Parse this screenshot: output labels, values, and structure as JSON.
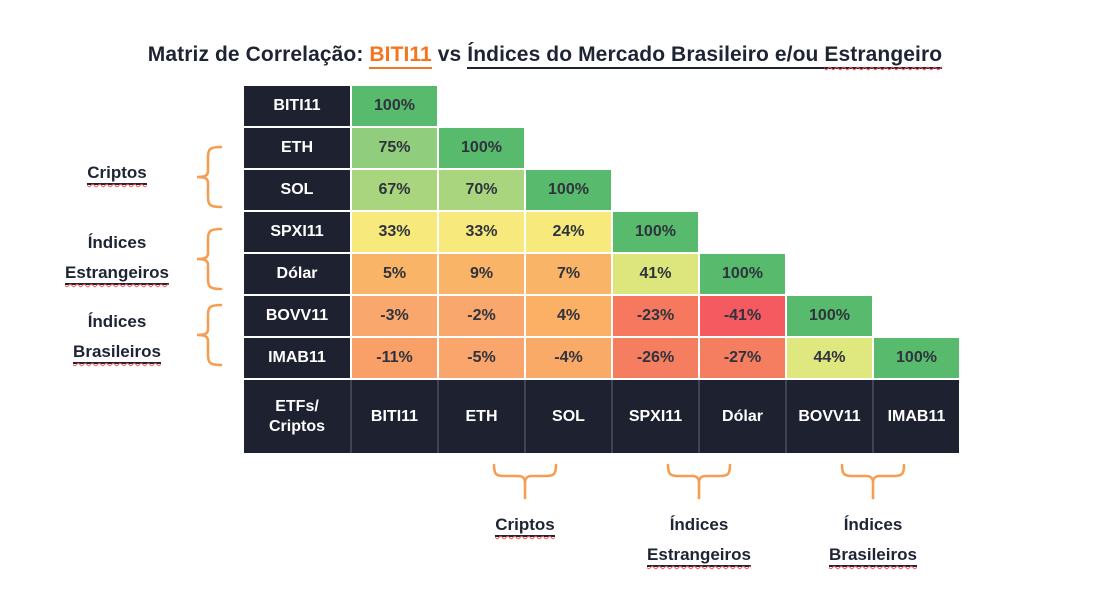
{
  "title": {
    "prefix": "Matriz de Correlação: ",
    "highlight": "BITI11",
    "middle": " vs ",
    "suffix_plain": "Índices do Mercado Brasileiro e/ou ",
    "suffix_squiggle": "Estrangeiro"
  },
  "colors": {
    "header_navy": "#1e2230",
    "accent_orange": "#f5741d",
    "brace_orange": "#f59d52",
    "squiggle_red": "#ff5050",
    "positive_green": "#58ba6c",
    "negative_red": "#f55a61"
  },
  "chart_data": {
    "type": "heatmap",
    "title": "Matriz de Correlação: BITI11 vs Índices do Mercado Brasileiro e/ou Estrangeiro",
    "corner_label_lines": [
      "ETFs/",
      "Criptos"
    ],
    "labels": [
      "BITI11",
      "ETH",
      "SOL",
      "SPXI11",
      "Dólar",
      "BOVV11",
      "IMAB11"
    ],
    "value_suffix": "%",
    "matrix_percent": [
      [
        100
      ],
      [
        75,
        100
      ],
      [
        67,
        70,
        100
      ],
      [
        33,
        33,
        24,
        100
      ],
      [
        5,
        9,
        7,
        41,
        100
      ],
      [
        -3,
        -2,
        4,
        -23,
        -41,
        100
      ],
      [
        -11,
        -5,
        -4,
        -26,
        -27,
        44,
        100
      ]
    ],
    "cell_colors": [
      [
        "#58ba6c"
      ],
      [
        "#90ce7d",
        "#58ba6c"
      ],
      [
        "#a9d57e",
        "#a9d57e",
        "#58ba6c"
      ],
      [
        "#f8e97c",
        "#f8e97c",
        "#f8e97c",
        "#58ba6c"
      ],
      [
        "#fab468",
        "#fab468",
        "#fab468",
        "#dde67c",
        "#58ba6c"
      ],
      [
        "#f9a76c",
        "#f9a76c",
        "#fbb066",
        "#f6795f",
        "#f55a61",
        "#58ba6c"
      ],
      [
        "#f9a069",
        "#f9a56b",
        "#faaa67",
        "#f57d60",
        "#f57d60",
        "#dfe77f",
        "#58ba6c"
      ]
    ],
    "row_groups": [
      {
        "label": "Criptos",
        "members": [
          "ETH",
          "SOL"
        ]
      },
      {
        "label": "Índices Estrangeiros",
        "members": [
          "SPXI11",
          "Dólar"
        ]
      },
      {
        "label": "Índices Brasileiros",
        "members": [
          "BOVV11",
          "IMAB11"
        ]
      }
    ],
    "col_groups": [
      {
        "label": "Criptos",
        "members": [
          "ETH",
          "SOL"
        ]
      },
      {
        "label": "Índices Estrangeiros",
        "members": [
          "SPXI11",
          "Dólar"
        ]
      },
      {
        "label": "Índices Brasileiros",
        "members": [
          "BOVV11",
          "IMAB11"
        ]
      }
    ]
  },
  "groups": {
    "left": [
      {
        "line1": "Criptos",
        "line2": ""
      },
      {
        "line1": "Índices",
        "line2": "Estrangeiros"
      },
      {
        "line1": "Índices",
        "line2": "Brasileiros"
      }
    ],
    "bottom": [
      {
        "line1": "Criptos",
        "line2": ""
      },
      {
        "line1": "Índices",
        "line2": "Estrangeiros"
      },
      {
        "line1": "Índices",
        "line2": "Brasileiros"
      }
    ]
  }
}
